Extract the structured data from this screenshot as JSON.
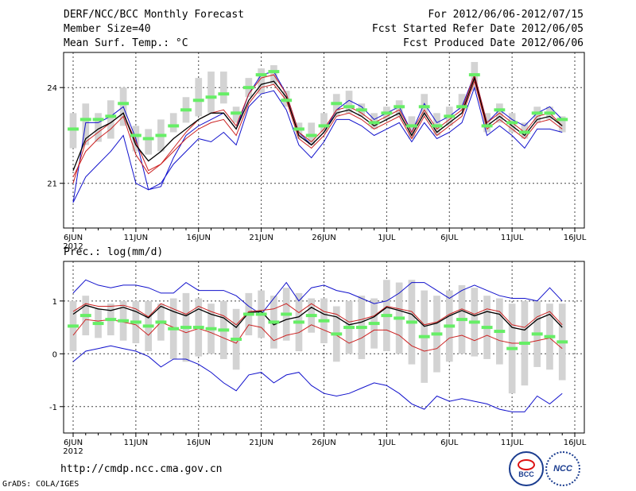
{
  "header": {
    "title": "DERF/NCC/BCC Monthly Forecast",
    "member_size": "Member Size=40",
    "variable1": "Mean Surf. Temp.: °C",
    "period": "For 2012/06/06-2012/07/15",
    "start_date": "Fcst Started Refer Date 2012/06/05",
    "produced_date": "Fcst Produced Date 2012/06/06"
  },
  "footer": {
    "url": "http://cmdp.ncc.cma.gov.cn",
    "grads": "GrADS: COLA/IGES",
    "logo_bcc": "BCC",
    "logo_ncc": "NCC"
  },
  "colors": {
    "box": "#d3d3d3",
    "median": "#66ee66",
    "outer": "#1111cc",
    "inner": "#cc2222",
    "mean": "#000000",
    "grid": "#444444"
  },
  "chart_data": [
    {
      "type": "line",
      "title": "Mean Surf. Temp.: °C",
      "x_tick_labels": [
        "6JUN",
        "11JUN",
        "16JUN",
        "21JUN",
        "26JUN",
        "1JUL",
        "6JUL",
        "11JUL",
        "16JUL"
      ],
      "x_year_label": "2012",
      "y_ticks": [
        21,
        24
      ],
      "ylim": [
        19.6,
        25.1
      ],
      "n_days": 40,
      "series": [
        {
          "name": "max",
          "values": [
            20.4,
            22.9,
            22.9,
            23.1,
            23.4,
            22.4,
            20.8,
            20.9,
            21.8,
            22.5,
            22.8,
            23.0,
            23.2,
            22.7,
            23.8,
            24.4,
            24.5,
            23.8,
            22.6,
            22.2,
            22.6,
            23.3,
            23.6,
            23.4,
            23.0,
            23.2,
            23.4,
            22.6,
            23.5,
            22.9,
            23.1,
            23.4,
            24.4,
            22.9,
            23.3,
            23.0,
            22.8,
            23.2,
            23.4,
            23.0
          ]
        },
        {
          "name": "p90",
          "values": [
            21.0,
            22.3,
            22.6,
            22.9,
            23.2,
            22.3,
            21.4,
            21.6,
            22.1,
            22.6,
            23.0,
            23.2,
            23.3,
            22.8,
            23.8,
            24.3,
            24.4,
            23.8,
            22.6,
            22.3,
            22.7,
            23.3,
            23.4,
            23.2,
            22.9,
            23.1,
            23.3,
            22.6,
            23.3,
            22.7,
            23.0,
            23.3,
            24.4,
            22.9,
            23.2,
            22.9,
            22.6,
            23.1,
            23.2,
            22.8
          ]
        },
        {
          "name": "mean",
          "values": [
            21.4,
            22.4,
            22.7,
            22.9,
            23.2,
            22.2,
            21.7,
            22.0,
            22.4,
            22.7,
            23.0,
            23.2,
            23.2,
            22.7,
            23.6,
            24.1,
            24.2,
            23.7,
            22.5,
            22.2,
            22.6,
            23.2,
            23.3,
            23.1,
            22.8,
            23.0,
            23.2,
            22.5,
            23.2,
            22.6,
            22.9,
            23.2,
            24.3,
            22.8,
            23.1,
            22.8,
            22.5,
            23.0,
            23.1,
            22.8
          ]
        },
        {
          "name": "p10",
          "values": [
            21.2,
            22.0,
            22.4,
            22.7,
            23.1,
            21.9,
            21.3,
            21.6,
            22.0,
            22.4,
            22.7,
            22.9,
            23.0,
            22.5,
            23.5,
            24.0,
            24.1,
            23.6,
            22.4,
            22.1,
            22.5,
            23.1,
            23.2,
            23.0,
            22.7,
            22.9,
            23.1,
            22.4,
            23.1,
            22.5,
            22.8,
            23.1,
            24.2,
            22.7,
            23.0,
            22.7,
            22.4,
            22.9,
            23.0,
            22.7
          ]
        },
        {
          "name": "min",
          "values": [
            20.4,
            21.2,
            21.6,
            22.0,
            22.5,
            21.0,
            20.8,
            21.0,
            21.6,
            22.0,
            22.4,
            22.3,
            22.6,
            22.2,
            23.4,
            23.8,
            23.9,
            23.3,
            22.2,
            21.8,
            22.3,
            23.0,
            23.0,
            22.8,
            22.5,
            22.7,
            22.9,
            22.3,
            22.9,
            22.4,
            22.6,
            22.9,
            24.0,
            22.5,
            22.8,
            22.5,
            22.1,
            22.7,
            22.7,
            22.6
          ]
        }
      ],
      "box_low": [
        22.1,
        22.2,
        22.3,
        22.4,
        22.8,
        22.0,
        21.9,
        22.0,
        22.6,
        22.9,
        23.1,
        23.2,
        23.5,
        22.9,
        23.7,
        23.8,
        24.1,
        23.4,
        22.4,
        22.2,
        22.6,
        23.1,
        23.2,
        23.1,
        22.7,
        23.0,
        23.1,
        22.4,
        23.1,
        22.5,
        22.8,
        23.3,
        23.9,
        22.6,
        22.9,
        22.6,
        22.4,
        22.9,
        23.0,
        22.6
      ],
      "box_high": [
        23.2,
        23.5,
        23.2,
        23.6,
        24.0,
        22.8,
        22.7,
        23.0,
        23.2,
        23.7,
        24.3,
        24.5,
        24.5,
        23.4,
        24.3,
        24.6,
        24.7,
        23.9,
        22.9,
        22.9,
        23.2,
        23.8,
        23.9,
        23.5,
        23.2,
        23.4,
        23.6,
        23.1,
        23.8,
        23.2,
        23.4,
        23.8,
        24.8,
        23.2,
        23.5,
        23.2,
        22.9,
        23.4,
        23.4,
        23.1
      ],
      "medians": [
        22.7,
        23.0,
        23.0,
        23.1,
        23.5,
        22.5,
        22.4,
        22.5,
        22.8,
        23.3,
        23.6,
        23.7,
        23.8,
        23.2,
        24.0,
        24.4,
        24.5,
        23.6,
        22.7,
        22.5,
        22.8,
        23.5,
        23.4,
        23.3,
        22.9,
        23.2,
        23.4,
        22.8,
        23.4,
        22.8,
        23.1,
        23.4,
        24.4,
        22.8,
        23.3,
        22.9,
        22.6,
        23.2,
        23.2,
        23.0
      ]
    },
    {
      "type": "line",
      "title": "Prec.: log(mm/d)",
      "x_tick_labels": [
        "6JUN",
        "11JUN",
        "16JUN",
        "21JUN",
        "26JUN",
        "1JUL",
        "6JUL",
        "11JUL",
        "16JUL"
      ],
      "x_year_label": "2012",
      "y_ticks": [
        -1,
        0,
        1
      ],
      "ylim": [
        -1.5,
        1.75
      ],
      "n_days": 40,
      "series": [
        {
          "name": "max",
          "values": [
            1.15,
            1.4,
            1.3,
            1.25,
            1.3,
            1.3,
            1.25,
            1.15,
            1.15,
            1.35,
            1.2,
            1.2,
            1.2,
            1.1,
            0.9,
            0.75,
            1.05,
            1.35,
            1.0,
            1.25,
            1.3,
            1.2,
            1.15,
            1.05,
            0.95,
            1.0,
            1.15,
            1.35,
            1.35,
            1.2,
            1.05,
            1.2,
            1.3,
            1.2,
            1.1,
            1.05,
            1.05,
            1.0,
            1.25,
            1.0
          ]
        },
        {
          "name": "p90",
          "values": [
            0.8,
            0.95,
            0.9,
            0.9,
            0.92,
            0.85,
            0.7,
            0.95,
            0.85,
            0.75,
            0.9,
            0.8,
            0.72,
            0.55,
            0.8,
            0.82,
            0.85,
            0.95,
            0.78,
            0.95,
            0.8,
            0.75,
            0.6,
            0.65,
            0.72,
            0.9,
            0.85,
            0.8,
            0.55,
            0.6,
            0.75,
            0.85,
            0.75,
            0.85,
            0.8,
            0.55,
            0.5,
            0.7,
            0.8,
            0.55
          ]
        },
        {
          "name": "mean",
          "values": [
            0.75,
            0.92,
            0.85,
            0.82,
            0.88,
            0.8,
            0.68,
            0.9,
            0.8,
            0.72,
            0.85,
            0.75,
            0.68,
            0.5,
            0.78,
            0.8,
            0.55,
            0.65,
            0.7,
            0.88,
            0.75,
            0.7,
            0.55,
            0.6,
            0.7,
            0.88,
            0.82,
            0.75,
            0.52,
            0.58,
            0.72,
            0.82,
            0.72,
            0.8,
            0.75,
            0.5,
            0.45,
            0.65,
            0.75,
            0.5
          ]
        },
        {
          "name": "p10",
          "values": [
            0.35,
            0.65,
            0.62,
            0.65,
            0.6,
            0.55,
            0.35,
            0.6,
            0.5,
            0.4,
            0.48,
            0.4,
            0.3,
            0.2,
            0.55,
            0.5,
            0.25,
            0.35,
            0.4,
            0.55,
            0.45,
            0.35,
            0.2,
            0.3,
            0.45,
            0.45,
            0.35,
            0.15,
            0.05,
            0.1,
            0.3,
            0.35,
            0.25,
            0.35,
            0.25,
            0.2,
            0.2,
            0.25,
            0.3,
            0.1
          ]
        },
        {
          "name": "min",
          "values": [
            -0.15,
            0.05,
            0.1,
            0.15,
            0.1,
            0.05,
            -0.05,
            -0.25,
            -0.1,
            -0.1,
            -0.2,
            -0.35,
            -0.55,
            -0.7,
            -0.4,
            -0.35,
            -0.55,
            -0.4,
            -0.35,
            -0.6,
            -0.75,
            -0.8,
            -0.75,
            -0.65,
            -0.55,
            -0.6,
            -0.75,
            -0.95,
            -1.05,
            -0.8,
            -0.9,
            -0.85,
            -0.9,
            -0.95,
            -1.05,
            -1.1,
            -1.1,
            -0.8,
            -0.95,
            -0.75
          ]
        }
      ],
      "box_low": [
        0.05,
        0.35,
        0.3,
        0.35,
        0.25,
        0.2,
        0.05,
        0.25,
        -0.1,
        -0.15,
        -0.05,
        0.0,
        -0.1,
        -0.3,
        0.35,
        0.3,
        0.1,
        0.25,
        0.05,
        0.4,
        0.2,
        -0.15,
        0.0,
        -0.1,
        0.1,
        0.05,
        0.0,
        -0.2,
        -0.55,
        -0.35,
        -0.15,
        0.0,
        -0.05,
        -0.1,
        -0.2,
        -0.75,
        -0.6,
        -0.25,
        -0.3,
        -0.5
      ],
      "box_high": [
        1.0,
        1.1,
        0.85,
        0.95,
        1.0,
        1.0,
        1.0,
        0.95,
        1.05,
        1.15,
        1.05,
        0.95,
        1.0,
        0.85,
        1.15,
        1.2,
        1.1,
        1.25,
        1.15,
        1.05,
        1.05,
        0.9,
        1.0,
        1.1,
        1.05,
        1.4,
        1.35,
        1.4,
        1.2,
        1.1,
        1.2,
        1.3,
        1.25,
        1.1,
        1.05,
        0.95,
        1.0,
        1.0,
        0.95,
        0.95
      ]
    }
  ]
}
